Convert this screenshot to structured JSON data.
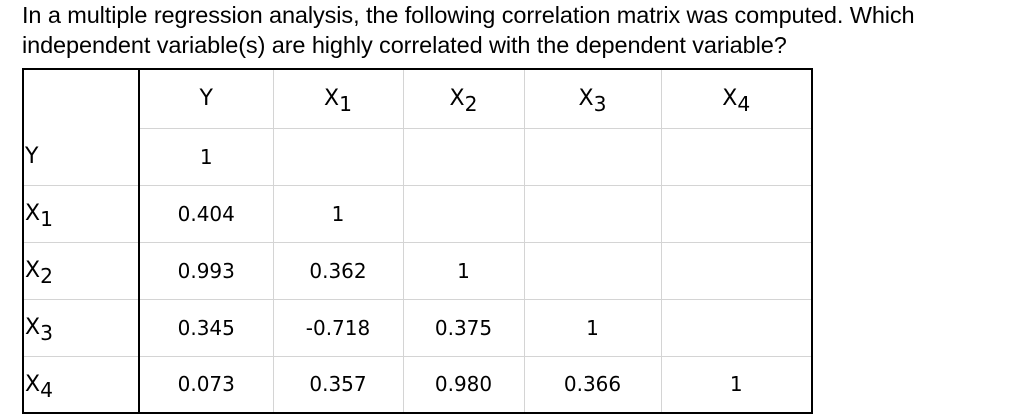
{
  "question": "In a multiple regression analysis, the following correlation matrix was computed. Which independent variable(s) are highly correlated with the dependent variable?",
  "matrix": {
    "header": {
      "corner": "",
      "columns": [
        {
          "base": "Y",
          "sub": ""
        },
        {
          "base": "X",
          "sub": "1"
        },
        {
          "base": "X",
          "sub": "2"
        },
        {
          "base": "X",
          "sub": "3"
        },
        {
          "base": "X",
          "sub": "4"
        }
      ]
    },
    "rows": [
      {
        "label": {
          "base": "Y",
          "sub": ""
        },
        "cells": [
          "1",
          "",
          "",
          "",
          ""
        ]
      },
      {
        "label": {
          "base": "X",
          "sub": "1"
        },
        "cells": [
          "0.404",
          "1",
          "",
          "",
          ""
        ]
      },
      {
        "label": {
          "base": "X",
          "sub": "2"
        },
        "cells": [
          "0.993",
          "0.362",
          "1",
          "",
          ""
        ]
      },
      {
        "label": {
          "base": "X",
          "sub": "3"
        },
        "cells": [
          "0.345",
          "-0.718",
          "0.375",
          "1",
          ""
        ]
      },
      {
        "label": {
          "base": "X",
          "sub": "4"
        },
        "cells": [
          "0.073",
          "0.357",
          "0.980",
          "0.366",
          "1"
        ]
      }
    ]
  }
}
